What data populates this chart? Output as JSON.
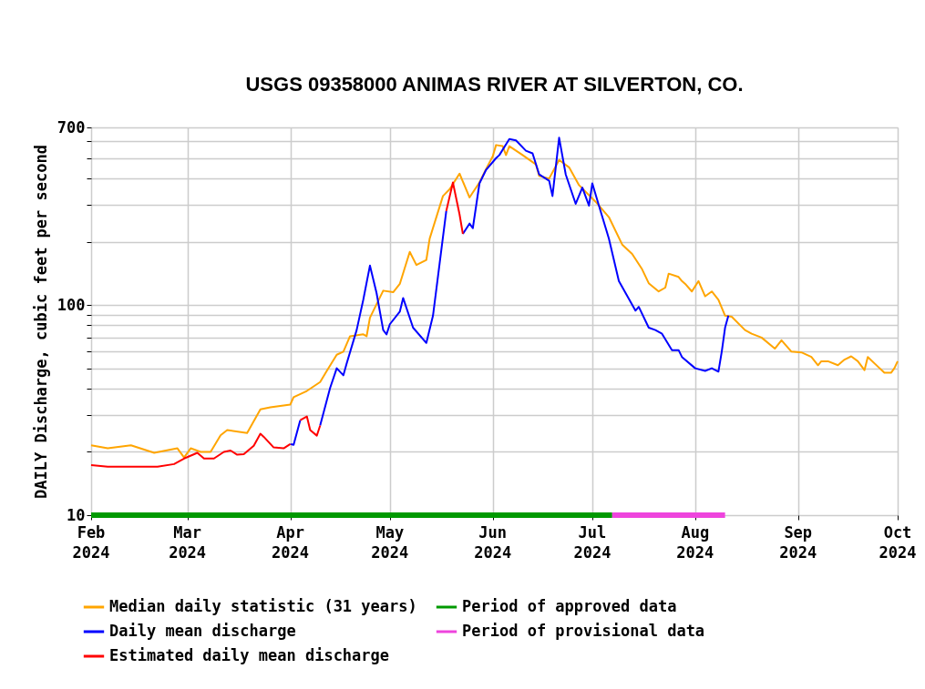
{
  "chart_data": {
    "type": "line",
    "title": "USGS 09358000 ANIMAS RIVER AT SILVERTON, CO.",
    "ylabel": "DAILY Discharge, cubic feet per second",
    "log": "y",
    "grid": true,
    "legend": "bottom",
    "line_style": "solid",
    "marker": "none",
    "xlim": [
      "2024-02-01",
      "2024-10-01"
    ],
    "xticks": [
      {
        "value": "2024-02-01",
        "label": "Feb 2024"
      },
      {
        "value": "2024-03-01",
        "label": "Mar 2024"
      },
      {
        "value": "2024-04-01",
        "label": "Apr 2024"
      },
      {
        "value": "2024-05-01",
        "label": "May 2024"
      },
      {
        "value": "2024-06-01",
        "label": "Jun 2024"
      },
      {
        "value": "2024-07-01",
        "label": "Jul 2024"
      },
      {
        "value": "2024-08-01",
        "label": "Aug 2024"
      },
      {
        "value": "2024-09-01",
        "label": "Sep 2024"
      },
      {
        "value": "2024-10-01",
        "label": "Oct 2024"
      }
    ],
    "ylim": [
      10,
      700
    ],
    "yticks": [
      10,
      {
        "value": 20,
        "label": null
      },
      {
        "value": 30,
        "label": null
      },
      {
        "value": 40,
        "label": null
      },
      {
        "value": 50,
        "label": null
      },
      {
        "value": 60,
        "label": null
      },
      {
        "value": 70,
        "label": null
      },
      {
        "value": 80,
        "label": null
      },
      {
        "value": 90,
        "label": null
      },
      100,
      {
        "value": 200,
        "label": null
      },
      {
        "value": 300,
        "label": null
      },
      {
        "value": 400,
        "label": null
      },
      {
        "value": 500,
        "label": null
      },
      {
        "value": 600,
        "label": null
      },
      700
    ],
    "series": [
      {
        "name": "Median daily statistic (31 years)",
        "color": "#ffa500",
        "x": [
          "2024-02-01",
          "2024-02-06",
          "2024-02-13",
          "2024-02-20",
          "2024-02-27",
          "2024-02-29",
          "2024-03-02",
          "2024-03-05",
          "2024-03-08",
          "2024-03-11",
          "2024-03-13",
          "2024-03-19",
          "2024-03-23",
          "2024-03-26",
          "2024-04-01",
          "2024-04-02",
          "2024-04-06",
          "2024-04-10",
          "2024-04-12",
          "2024-04-15",
          "2024-04-17",
          "2024-04-19",
          "2024-04-23",
          "2024-04-24",
          "2024-04-25",
          "2024-04-29",
          "2024-05-02",
          "2024-05-04",
          "2024-05-07",
          "2024-05-09",
          "2024-05-12",
          "2024-05-13",
          "2024-05-17",
          "2024-05-19",
          "2024-05-22",
          "2024-05-25",
          "2024-05-28",
          "2024-05-30",
          "2024-06-01",
          "2024-06-02",
          "2024-06-04",
          "2024-06-05",
          "2024-06-06",
          "2024-06-10",
          "2024-06-14",
          "2024-06-15",
          "2024-06-18",
          "2024-06-21",
          "2024-06-24",
          "2024-06-27",
          "2024-07-02",
          "2024-07-06",
          "2024-07-10",
          "2024-07-13",
          "2024-07-16",
          "2024-07-18",
          "2024-07-21",
          "2024-07-23",
          "2024-07-24",
          "2024-07-27",
          "2024-07-28",
          "2024-07-29",
          "2024-07-31",
          "2024-08-02",
          "2024-08-04",
          "2024-08-06",
          "2024-08-08",
          "2024-08-10",
          "2024-08-12",
          "2024-08-16",
          "2024-08-18",
          "2024-08-21",
          "2024-08-25",
          "2024-08-27",
          "2024-08-30",
          "2024-09-02",
          "2024-09-05",
          "2024-09-07",
          "2024-09-08",
          "2024-09-10",
          "2024-09-13",
          "2024-09-15",
          "2024-09-17",
          "2024-09-19",
          "2024-09-21",
          "2024-09-22",
          "2024-09-25",
          "2024-09-27",
          "2024-09-29",
          "2024-09-30",
          "2024-10-01"
        ],
        "values": [
          21.5,
          20.8,
          21.5,
          19.8,
          20.8,
          18.8,
          20.8,
          20,
          20,
          24,
          25.4,
          24.6,
          31.9,
          32.6,
          33.6,
          36.4,
          39,
          43,
          48.6,
          58,
          60,
          71,
          72.5,
          71,
          87,
          117,
          115,
          126,
          179,
          155,
          164,
          207,
          330,
          355,
          422,
          325,
          383,
          444,
          510,
          577,
          570,
          517,
          570,
          517,
          467,
          411,
          400,
          490,
          452,
          372,
          310,
          262,
          194,
          175,
          148,
          127,
          116,
          121,
          141,
          136,
          130,
          126,
          116,
          130,
          110,
          116,
          106,
          89,
          88,
          76,
          73,
          70,
          62,
          68,
          60,
          59.5,
          56.6,
          51.7,
          54,
          54,
          51.7,
          55,
          57,
          54,
          49,
          56.6,
          51,
          47.6,
          47.6,
          50,
          54
        ]
      },
      {
        "name": "Daily mean discharge",
        "color": "#0000ff",
        "x": [
          "2024-04-01",
          "2024-04-02",
          "2024-04-04",
          "2024-04-06",
          "2024-04-07",
          "2024-04-09",
          "2024-04-10",
          "2024-04-13",
          "2024-04-15",
          "2024-04-17",
          "2024-04-18",
          "2024-04-21",
          "2024-04-23",
          "2024-04-25",
          "2024-04-27",
          "2024-04-29",
          "2024-04-30",
          "2024-05-01",
          "2024-05-04",
          "2024-05-05",
          "2024-05-08",
          "2024-05-12",
          "2024-05-14",
          "2024-05-16",
          "2024-05-18",
          "2024-05-20",
          "2024-05-22",
          "2024-05-23",
          "2024-05-25",
          "2024-05-26",
          "2024-05-28",
          "2024-05-30",
          "2024-06-02",
          "2024-06-03",
          "2024-06-06",
          "2024-06-08",
          "2024-06-11",
          "2024-06-13",
          "2024-06-15",
          "2024-06-18",
          "2024-06-19",
          "2024-06-21",
          "2024-06-23",
          "2024-06-26",
          "2024-06-28",
          "2024-06-30",
          "2024-07-01",
          "2024-07-03",
          "2024-07-06",
          "2024-07-09",
          "2024-07-14",
          "2024-07-15",
          "2024-07-18",
          "2024-07-20",
          "2024-07-22",
          "2024-07-25",
          "2024-07-27",
          "2024-07-28",
          "2024-08-01",
          "2024-08-04",
          "2024-08-06",
          "2024-08-08",
          "2024-08-09",
          "2024-08-10",
          "2024-08-11"
        ],
        "values": [
          21.8,
          21.6,
          28.3,
          null,
          null,
          null,
          26.7,
          40.3,
          50,
          46.3,
          52.8,
          76,
          106,
          154,
          114,
          76,
          72.5,
          81,
          93,
          108,
          78,
          66,
          89,
          158,
          280,
          null,
          null,
          218,
          244,
          232,
          379,
          440,
          500,
          517,
          616,
          607,
          542,
          527,
          418,
          390,
          330,
          625,
          418,
          303,
          362,
          297,
          379,
          297,
          207,
          130,
          94,
          98,
          78,
          76,
          73,
          61,
          61,
          56.6,
          50,
          48.6,
          50,
          48.2,
          60,
          78,
          89
        ]
      },
      {
        "name": "Estimated daily mean discharge",
        "color": "#ff0000",
        "x": [
          "2024-02-01",
          "2024-02-06",
          "2024-02-21",
          "2024-02-26",
          "2024-02-29",
          "2024-03-04",
          "2024-03-06",
          "2024-03-09",
          "2024-03-12",
          "2024-03-14",
          "2024-03-16",
          "2024-03-18",
          "2024-03-21",
          "2024-03-23",
          "2024-03-24",
          "2024-03-27",
          "2024-03-30",
          "2024-04-01",
          "2024-04-02",
          "2024-04-04",
          "2024-04-06",
          "2024-04-07",
          "2024-04-09",
          "2024-04-10",
          "2024-04-13",
          "2024-04-15",
          "2024-04-17",
          "2024-04-18",
          "2024-04-21",
          "2024-04-23",
          "2024-04-25",
          "2024-04-27",
          "2024-04-29",
          "2024-04-30",
          "2024-05-01",
          "2024-05-04",
          "2024-05-05",
          "2024-05-08",
          "2024-05-12",
          "2024-05-14",
          "2024-05-16",
          "2024-05-18",
          "2024-05-20",
          "2024-05-22",
          "2024-05-23"
        ],
        "values": [
          17.3,
          17.0,
          17.0,
          17.5,
          18.6,
          19.8,
          18.6,
          18.6,
          20,
          20.3,
          19.4,
          19.5,
          21.4,
          24.4,
          23.6,
          21,
          20.8,
          21.8,
          null,
          28.3,
          29.5,
          25.4,
          23.9,
          26.7,
          null,
          null,
          null,
          null,
          null,
          null,
          null,
          null,
          null,
          null,
          null,
          null,
          null,
          null,
          null,
          null,
          null,
          280,
          383,
          270,
          218
        ]
      },
      {
        "name": "Period of approved data",
        "color": "#009900",
        "x": [
          "2024-02-01",
          "2024-07-07"
        ],
        "values": [
          10,
          10
        ]
      },
      {
        "name": "Period of provisional data",
        "color": "#ee44dd",
        "x": [
          "2024-07-07",
          "2024-08-10"
        ],
        "values": [
          10,
          10
        ]
      }
    ]
  }
}
